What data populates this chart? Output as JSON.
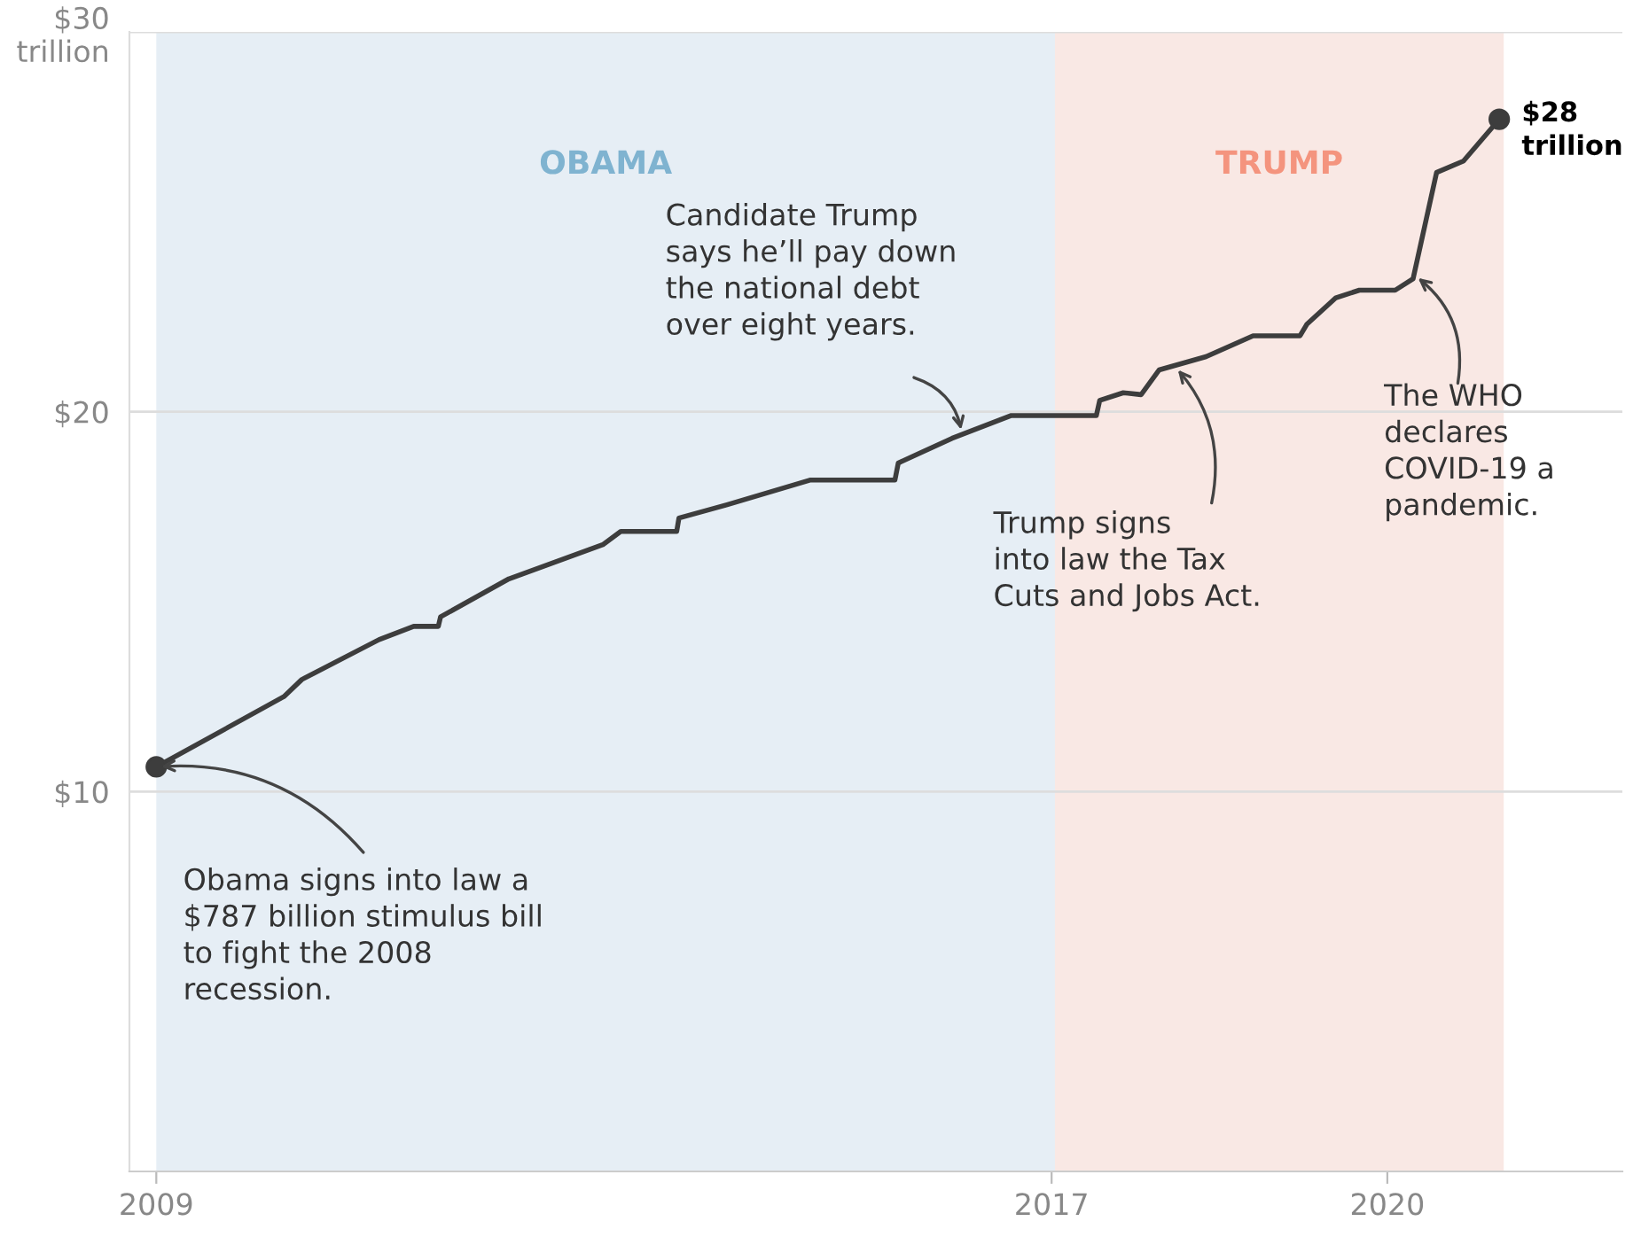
{
  "chart_data": {
    "type": "line",
    "x": [
      2009.0,
      2010.14,
      2010.3,
      2010.99,
      2011.3,
      2011.52,
      2011.54,
      2012.15,
      2012.99,
      2013.15,
      2013.65,
      2013.67,
      2014.1,
      2014.84,
      2015.6,
      2015.63,
      2016.11,
      2016.64,
      2016.9,
      2017.4,
      2017.43,
      2017.64,
      2017.8,
      2017.96,
      2018.38,
      2018.8,
      2019.22,
      2019.28,
      2019.54,
      2019.75,
      2020.07,
      2020.23,
      2020.44,
      2020.68,
      2021.0
    ],
    "series": [
      {
        "color": "#3d3d3d",
        "values": [
          10.65,
          12.5,
          12.95,
          14.0,
          14.35,
          14.35,
          14.6,
          15.6,
          16.5,
          16.85,
          16.85,
          17.2,
          17.55,
          18.2,
          18.2,
          18.65,
          19.3,
          19.9,
          19.9,
          19.9,
          20.3,
          20.5,
          20.45,
          21.1,
          21.45,
          22.0,
          22.0,
          22.3,
          23.0,
          23.2,
          23.2,
          23.5,
          26.3,
          26.6,
          27.7
        ]
      }
    ],
    "xlim": [
      2008.76,
      2022.1
    ],
    "ylim": [
      0,
      30
    ],
    "xticks": [
      2009,
      2017,
      2020
    ],
    "yticks": [
      {
        "value": 10,
        "label": "$10"
      },
      {
        "value": 20,
        "label": "$20"
      },
      {
        "value": 30,
        "label": "$30\ntrillion"
      }
    ],
    "grid": "y",
    "line_style": "solid",
    "bands": [
      {
        "axis": "x",
        "from": 2009.0,
        "to": 2017.03,
        "label": "OBAMA",
        "color": "#e6eef5"
      },
      {
        "axis": "x",
        "from": 2017.03,
        "to": 2021.04,
        "label": "TRUMP",
        "color": "#f9e8e4"
      }
    ],
    "annotations": [
      {
        "text": "Obama signs into law a\n$787 billion stimulus bill\nto fight the 2008\nrecession.",
        "x": 2009.0,
        "y": 10.65
      },
      {
        "text": "Candidate Trump\nsays he’ll pay down\nthe national debt\nover eight years.",
        "x": 2016.2,
        "y": 19.4
      },
      {
        "text": "Trump signs\ninto law the Tax\nCuts and Jobs Act.",
        "x": 2018.1,
        "y": 21.2
      },
      {
        "text": "The WHO\ndeclares\nCOVID-19 a\npandemic.",
        "x": 2020.24,
        "y": 23.6
      },
      {
        "text": "$28\ntrillion",
        "x": 2021.0,
        "y": 27.7
      }
    ]
  }
}
